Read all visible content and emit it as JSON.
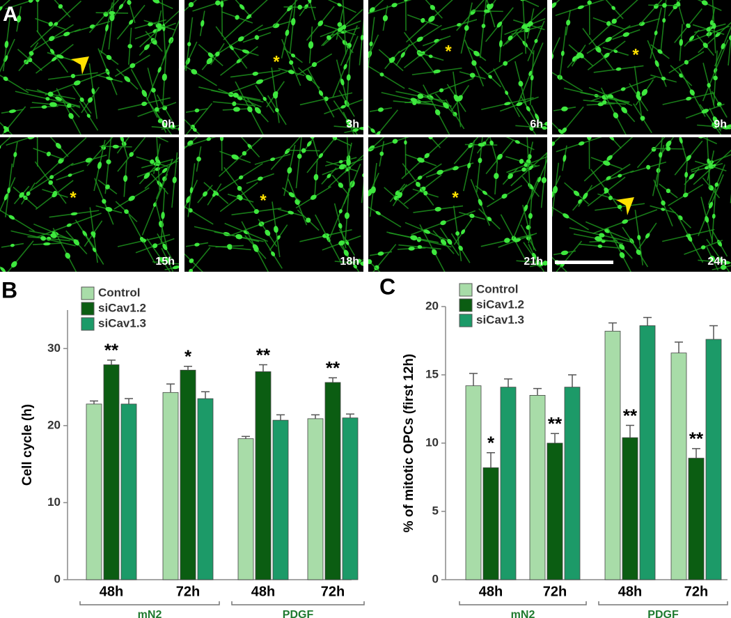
{
  "panel_a": {
    "label": "A",
    "frames": [
      {
        "time": "0h",
        "marker": null
      },
      {
        "time": "3h",
        "marker": "*"
      },
      {
        "time": "6h",
        "marker": "*"
      },
      {
        "time": "9h",
        "marker": "*"
      },
      {
        "time": "15h",
        "marker": "*"
      },
      {
        "time": "18h",
        "marker": "*"
      },
      {
        "time": "21h",
        "marker": "*"
      },
      {
        "time": "24h",
        "marker": null
      }
    ]
  },
  "chart_data": [
    {
      "type": "bar",
      "panel_label": "B",
      "y_label": "Cell cycle (h)",
      "categories": [
        "48h",
        "72h",
        "48h",
        "72h"
      ],
      "group_labels": [
        "mN2",
        "PDGF"
      ],
      "ylim": [
        0,
        35
      ],
      "yticks": [
        0,
        10,
        20,
        30
      ],
      "series": [
        {
          "name": "Control",
          "color": "#a8dca8",
          "values": [
            22.8,
            24.3,
            18.3,
            20.9
          ],
          "errors": [
            0.4,
            1.1,
            0.3,
            0.5
          ],
          "significance": [
            null,
            null,
            null,
            null
          ]
        },
        {
          "name": "siCav1.2",
          "color": "#0b5d12",
          "values": [
            27.9,
            27.2,
            27.0,
            25.6
          ],
          "errors": [
            0.6,
            0.5,
            0.9,
            0.6
          ],
          "significance": [
            "**",
            "*",
            "**",
            "**"
          ]
        },
        {
          "name": "siCav1.3",
          "color": "#1c9a68",
          "values": [
            22.8,
            23.5,
            20.7,
            21.0
          ],
          "errors": [
            0.7,
            0.9,
            0.7,
            0.5
          ],
          "significance": [
            null,
            null,
            null,
            null
          ]
        }
      ]
    },
    {
      "type": "bar",
      "panel_label": "C",
      "y_label": "% of mitotic OPCs (first 12h)",
      "categories": [
        "48h",
        "72h",
        "48h",
        "72h"
      ],
      "group_labels": [
        "mN2",
        "PDGF"
      ],
      "ylim": [
        0,
        20
      ],
      "yticks": [
        0,
        5,
        10,
        15,
        20
      ],
      "series": [
        {
          "name": "Control",
          "color": "#a8dca8",
          "values": [
            14.2,
            13.5,
            18.2,
            16.6
          ],
          "errors": [
            0.9,
            0.5,
            0.6,
            0.8
          ],
          "significance": [
            null,
            null,
            null,
            null
          ]
        },
        {
          "name": "siCav1.2",
          "color": "#0b5d12",
          "values": [
            8.2,
            10.0,
            10.4,
            8.9
          ],
          "errors": [
            1.1,
            0.7,
            0.9,
            0.7
          ],
          "significance": [
            "*",
            "**",
            "**",
            "**"
          ]
        },
        {
          "name": "siCav1.3",
          "color": "#1c9a68",
          "values": [
            14.1,
            14.1,
            18.6,
            17.6
          ],
          "errors": [
            0.6,
            0.9,
            0.6,
            1.0
          ],
          "significance": [
            null,
            null,
            null,
            null
          ]
        }
      ]
    }
  ]
}
